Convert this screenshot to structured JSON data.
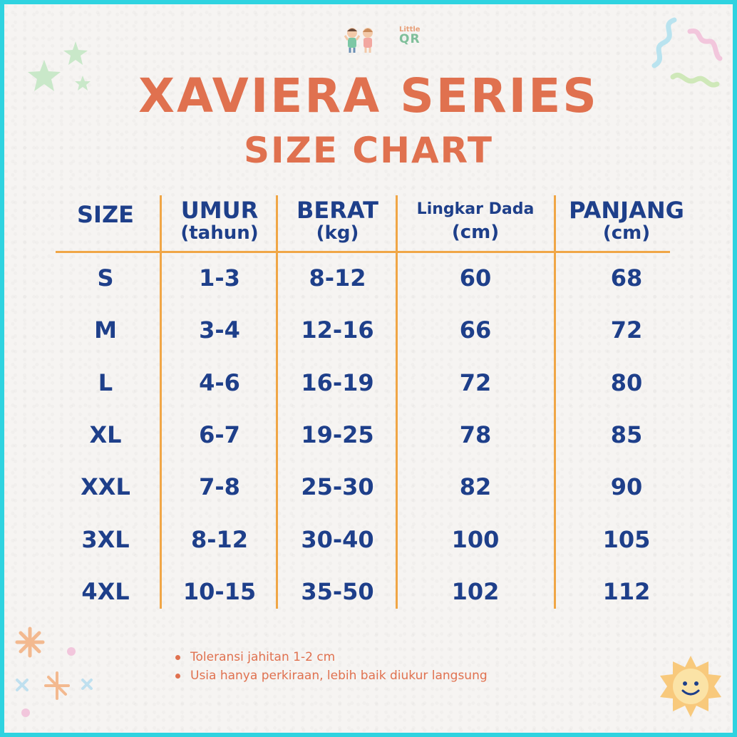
{
  "logo": {
    "line1": "Little",
    "line2": "QR"
  },
  "title": "XAVIERA SERIES",
  "subtitle": "SIZE CHART",
  "table": {
    "headers": [
      {
        "main": "SIZE",
        "unit": ""
      },
      {
        "main": "UMUR",
        "unit": "(tahun)"
      },
      {
        "main": "BERAT",
        "unit": "(kg)"
      },
      {
        "main": "Lingkar Dada",
        "unit": "(cm)"
      },
      {
        "main": "PANJANG",
        "unit": "(cm)"
      }
    ],
    "rows": [
      [
        "S",
        "1-3",
        "8-12",
        "60",
        "68"
      ],
      [
        "M",
        "3-4",
        "12-16",
        "66",
        "72"
      ],
      [
        "L",
        "4-6",
        "16-19",
        "72",
        "80"
      ],
      [
        "XL",
        "6-7",
        "19-25",
        "78",
        "85"
      ],
      [
        "XXL",
        "7-8",
        "25-30",
        "82",
        "90"
      ],
      [
        "3XL",
        "8-12",
        "30-40",
        "100",
        "105"
      ],
      [
        "4XL",
        "10-15",
        "35-50",
        "102",
        "112"
      ]
    ]
  },
  "notes": [
    "Toleransi jahitan 1-2 cm",
    "Usia hanya perkiraan, lebih baik diukur langsung"
  ],
  "colors": {
    "border": "#2fd3e0",
    "title": "#e0714f",
    "table_text": "#1e3f8a",
    "divider": "#f0a646"
  }
}
